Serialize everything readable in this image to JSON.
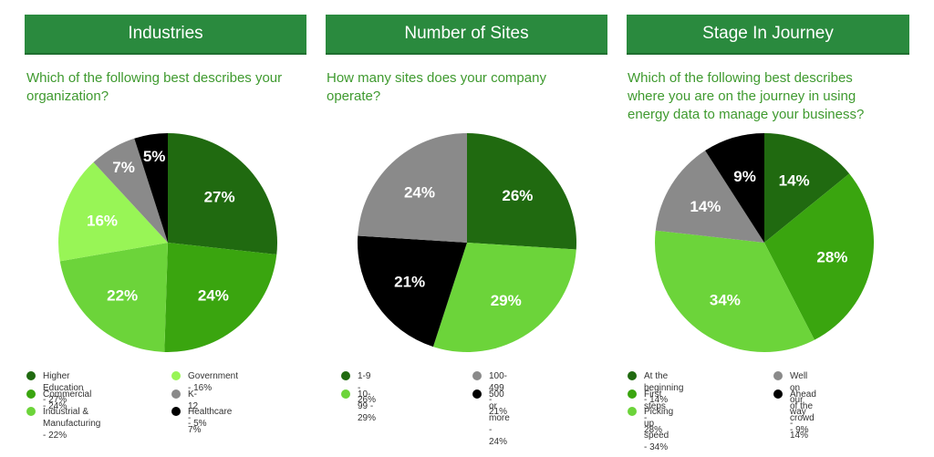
{
  "colors": {
    "header_bg": "#2a8a3e",
    "question_text": "#3f9a2f",
    "dark_green": "#206a10",
    "green": "#3aa50f",
    "light_green": "#6cd43a",
    "bright_green": "#98f556",
    "grey": "#8a8a8a",
    "black": "#000000"
  },
  "panels": [
    {
      "header": "Industries",
      "question": "Which of the following best describes your\norganization?",
      "legend": [
        {
          "label": "Higher Education - 27%"
        },
        {
          "label": "Commercial - 24%"
        },
        {
          "label": "Industrial &\nManufacturing - 22%"
        },
        {
          "label": "Government - 16%"
        },
        {
          "label": "K-12 - 7%"
        },
        {
          "label": "Healthcare - 5%"
        }
      ]
    },
    {
      "header": "Number of Sites",
      "question": "How many sites does your company\noperate?",
      "legend": [
        {
          "label": "1-9 - 26%"
        },
        {
          "label": "10-99 - 29%"
        },
        {
          "label": "100-499 - 21%"
        },
        {
          "label": "500 or more - 24%"
        }
      ]
    },
    {
      "header": "Stage In Journey",
      "question": "Which of the following best describes\nwhere you are on the journey in using\nenergy data to manage your business?",
      "legend": [
        {
          "label": "At the beginning - 14%"
        },
        {
          "label": "First steps - 28%"
        },
        {
          "label": "Picking up speed - 34%"
        },
        {
          "label": "Well on our way - 14%"
        },
        {
          "label": "Ahead of the crowd - 9%"
        }
      ]
    }
  ],
  "chart_data": [
    {
      "type": "pie",
      "title": "Industries",
      "categories": [
        "Higher Education",
        "Commercial",
        "Industrial & Manufacturing",
        "Government",
        "K-12",
        "Healthcare"
      ],
      "values": [
        27,
        24,
        22,
        16,
        7,
        5
      ],
      "labels": [
        "27%",
        "24%",
        "22%",
        "16%",
        "7%",
        "5%"
      ],
      "colors": [
        "#206a10",
        "#3aa50f",
        "#6cd43a",
        "#98f556",
        "#8a8a8a",
        "#000000"
      ]
    },
    {
      "type": "pie",
      "title": "Number of Sites",
      "categories": [
        "1-9",
        "10-99",
        "100-499",
        "500 or more"
      ],
      "values": [
        26,
        29,
        21,
        24
      ],
      "labels": [
        "26%",
        "29%",
        "21%",
        "24%"
      ],
      "colors": [
        "#206a10",
        "#6cd43a",
        "#000000",
        "#8a8a8a"
      ]
    },
    {
      "type": "pie",
      "title": "Stage In Journey",
      "categories": [
        "At the beginning",
        "First steps",
        "Picking up speed",
        "Well on our way",
        "Ahead of the crowd"
      ],
      "values": [
        14,
        28,
        34,
        14,
        9
      ],
      "labels": [
        "14%",
        "28%",
        "34%",
        "14%",
        "9%"
      ],
      "colors": [
        "#206a10",
        "#3aa50f",
        "#6cd43a",
        "#8a8a8a",
        "#000000"
      ]
    }
  ]
}
